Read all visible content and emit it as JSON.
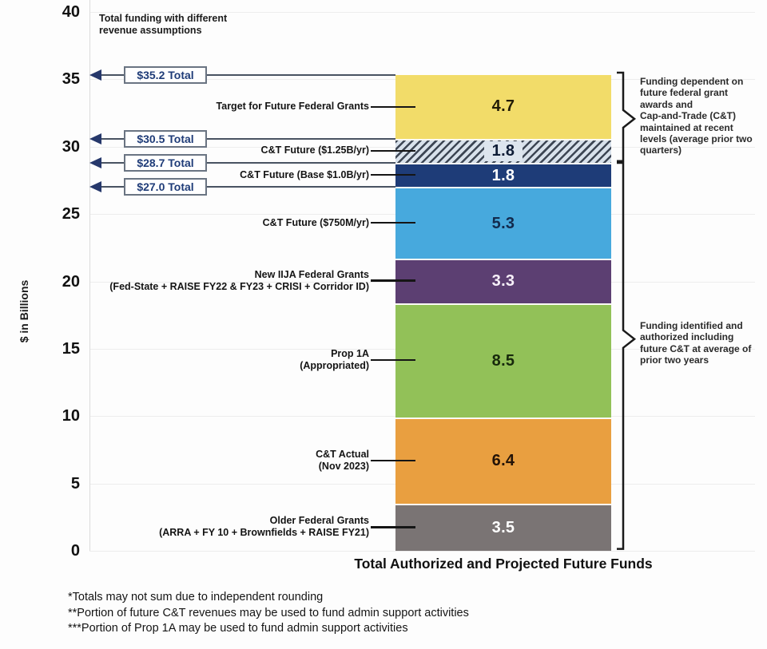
{
  "note": "Total funding with different\nrevenue assumptions",
  "y_axis": {
    "title": "$ in Billions"
  },
  "x_axis": {
    "title": "Total Authorized and Projected Future Funds"
  },
  "chart_data": {
    "type": "bar",
    "stacked": true,
    "title": "Total funding with different revenue assumptions",
    "categories": [
      "Total Authorized and Projected Future Funds"
    ],
    "xlabel": "Total Authorized and Projected Future Funds",
    "ylabel": "$ in Billions",
    "ylim": [
      0,
      40
    ],
    "yticks": [
      0,
      5,
      10,
      15,
      20,
      25,
      30,
      35,
      40
    ],
    "grid": "horizontal",
    "segments": [
      {
        "label": "Older Federal Grants",
        "sublabel": "(ARRA + FY 10 + Brownfields + RAISE FY21)",
        "value": 3.5,
        "color": "#7a7474",
        "text_color": "#ffffff",
        "pattern": "solid"
      },
      {
        "label": "C&T Actual",
        "sublabel": "(Nov 2023)",
        "value": 6.4,
        "color": "#e99f40",
        "text_color": "#241307",
        "pattern": "solid"
      },
      {
        "label": "Prop 1A",
        "sublabel": "(Appropriated)",
        "value": 8.5,
        "color": "#92c158",
        "text_color": "#17290c",
        "pattern": "solid"
      },
      {
        "label": "New IIJA Federal Grants",
        "sublabel": "(Fed-State + RAISE FY22 & FY23 + CRISI + Corridor ID)",
        "value": 3.3,
        "color": "#5c3f72",
        "text_color": "#f7f0f9",
        "pattern": "solid"
      },
      {
        "label": "C&T Future ($750M/yr)",
        "sublabel": "",
        "value": 5.3,
        "color": "#47a9dd",
        "text_color": "#122a4d",
        "pattern": "solid"
      },
      {
        "label": "C&T Future (Base $1.0B/yr)",
        "sublabel": "",
        "value": 1.8,
        "color": "#1e3c78",
        "text_color": "#ffffff",
        "pattern": "solid"
      },
      {
        "label": "C&T Future ($1.25B/yr)",
        "sublabel": "",
        "value": 1.8,
        "color": "#d8e1eb",
        "hatch_color": "#3d4654",
        "text_color": "#0e1c36",
        "value_bg": "#dde5ee",
        "pattern": "hatch"
      },
      {
        "label": "Target for Future Federal Grants",
        "sublabel": "",
        "value": 4.7,
        "color": "#f2dc69",
        "text_color": "#221c06",
        "pattern": "solid"
      }
    ],
    "totals": [
      {
        "label": "$35.2 Total",
        "at": 35.3
      },
      {
        "label": "$30.5 Total",
        "at": 30.6
      },
      {
        "label": "$28.7 Total",
        "at": 28.8
      },
      {
        "label": "$27.0 Total",
        "at": 27.0
      }
    ]
  },
  "annotations": {
    "dependent": {
      "text": "Funding dependent on\nfuture federal grant\nawards and\nCap-and-Trade (C&T)\nmaintained at recent\nlevels (average prior two\nquarters)",
      "from": 28.8,
      "to": 35.3,
      "point_at": 32.05
    },
    "identified": {
      "text": "Funding identified and\nauthorized including\nfuture C&T at average of\nprior two years",
      "from": 0,
      "to": 28.6,
      "point_at": 15.7
    }
  },
  "footnotes": [
    "*Totals may not sum due to independent rounding",
    "**Portion of future C&T revenues may be used to fund admin support activities",
    "***Portion of Prop 1A may be used to fund admin support activities"
  ],
  "colors": {
    "arrow_line": "#495362",
    "arrow_head": "#26386b",
    "box_border": "#6a7482",
    "box_text": "#1f3c78",
    "brace": "#1a1a1a",
    "gridline": "#ededed",
    "segment_gap": "#fbfaf4"
  }
}
